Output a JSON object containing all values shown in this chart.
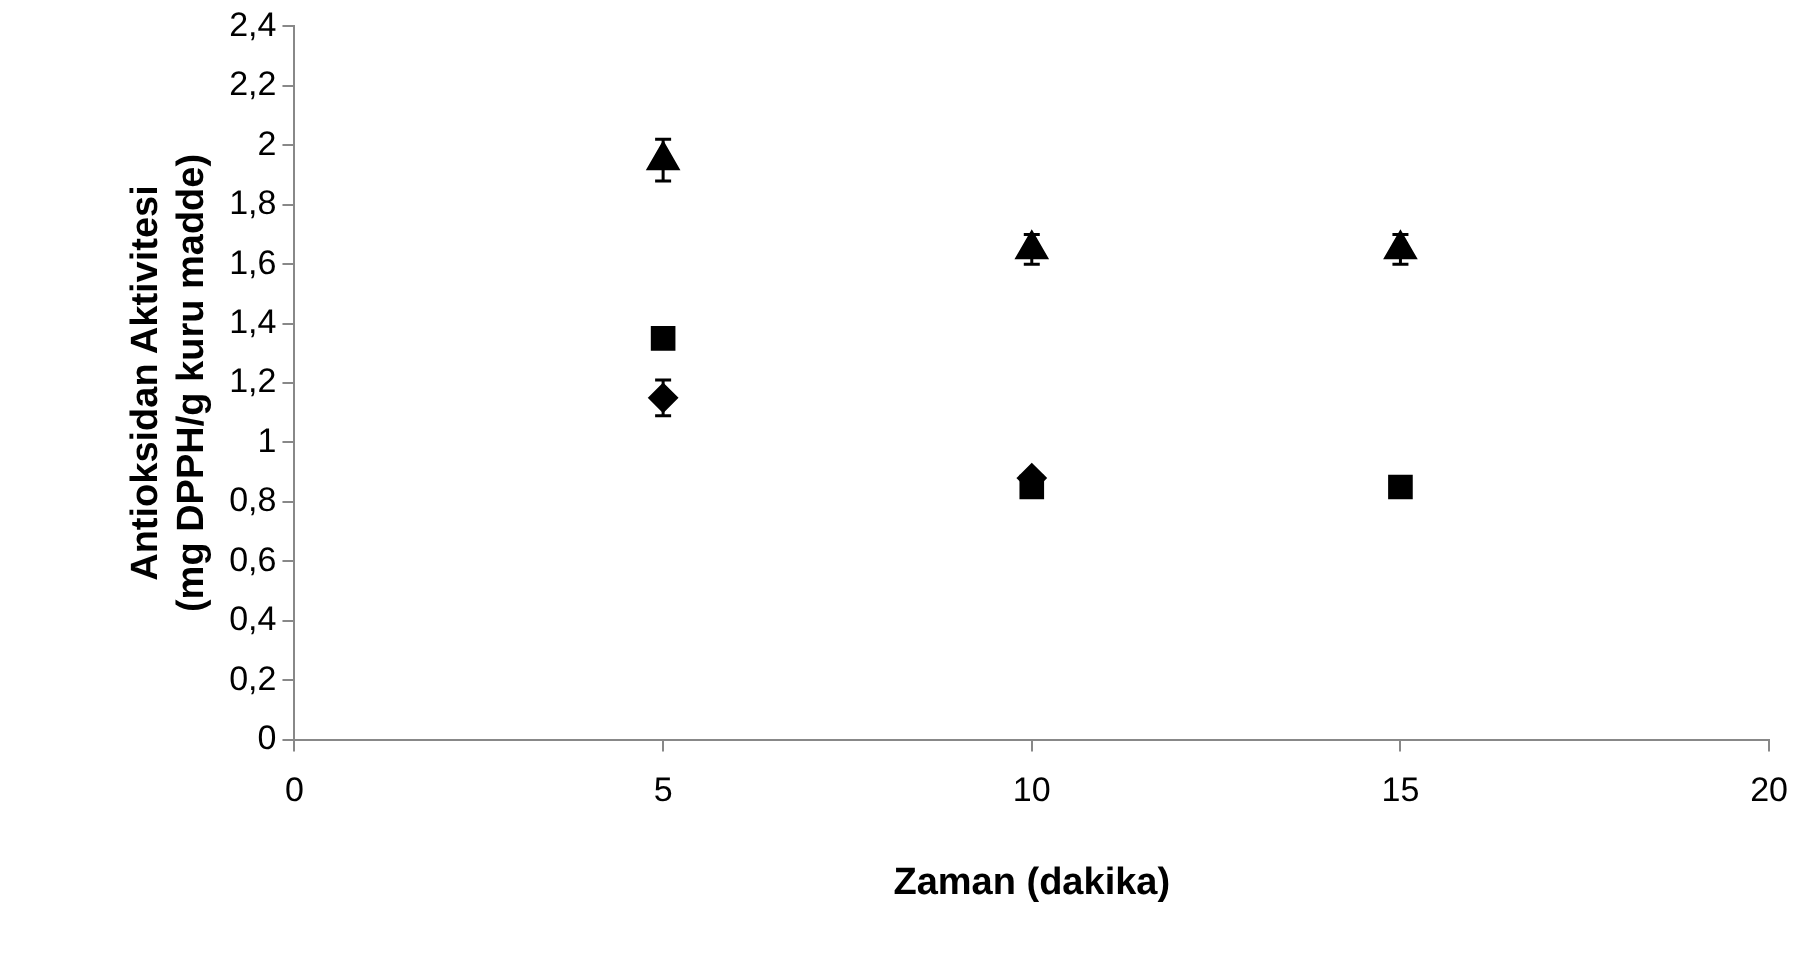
{
  "chart_data": {
    "type": "scatter",
    "xlabel": "Zaman (dakika)",
    "ylabel": "Antioksidan Aktivitesi\n(mg DPPH/g kuru madde)",
    "x": [
      5,
      10,
      15
    ],
    "series": [
      {
        "color": "#000000",
        "marker": "diamond",
        "values": [
          1.15,
          0.88,
          null
        ],
        "errors": [
          0.06,
          null,
          null
        ]
      },
      {
        "color": "#000000",
        "marker": "square",
        "values": [
          1.35,
          0.85,
          0.85
        ]
      },
      {
        "color": "#000000",
        "marker": "triangle",
        "values": [
          1.95,
          1.65,
          1.65
        ],
        "errors": [
          0.07,
          0.05,
          0.05
        ]
      }
    ],
    "xlim": [
      0,
      20
    ],
    "xticks": [
      0,
      5,
      10,
      15,
      20
    ],
    "ylim": [
      0,
      2.4
    ],
    "yticks": [
      0,
      {
        "value": 0.2,
        "label": "0,2"
      },
      {
        "value": 0.4,
        "label": "0,4"
      },
      {
        "value": 0.6,
        "label": "0,6"
      },
      {
        "value": 0.8,
        "label": "0,8"
      },
      1,
      {
        "value": 1.2,
        "label": "1,2"
      },
      {
        "value": 1.4,
        "label": "1,4"
      },
      {
        "value": 1.6,
        "label": "1,6"
      },
      {
        "value": 1.8,
        "label": "1,8"
      },
      2,
      {
        "value": 2.2,
        "label": "2,2"
      },
      {
        "value": 2.4,
        "label": "2,4"
      }
    ],
    "grid": false,
    "legend": false
  }
}
